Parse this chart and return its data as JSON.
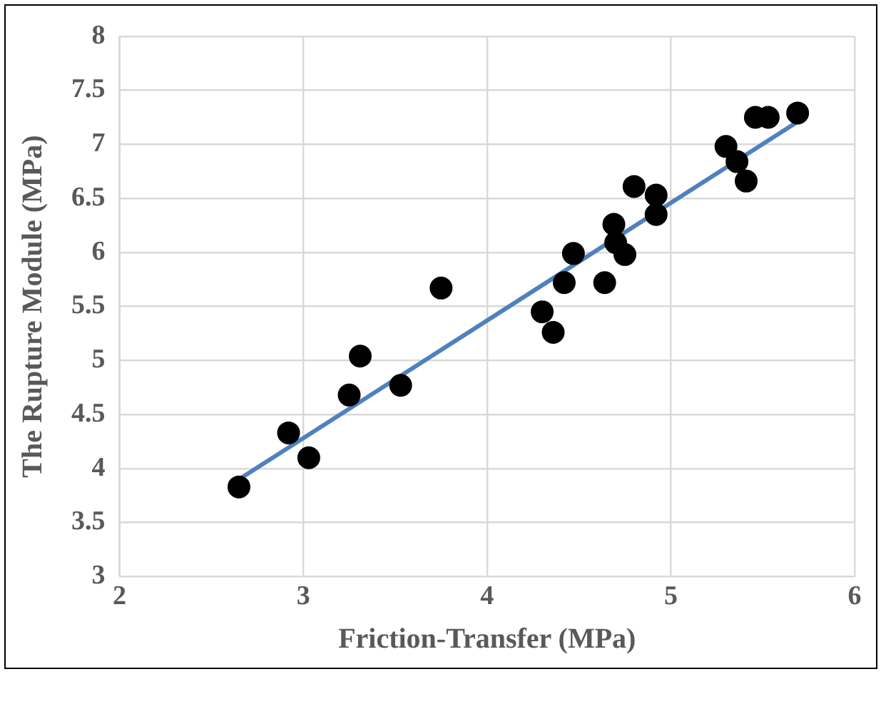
{
  "chart_data": {
    "type": "scatter",
    "xlabel": "Friction-Transfer (MPa)",
    "ylabel": "The Rupture Module (MPa)",
    "xlim": [
      2,
      6
    ],
    "xticks": [
      2,
      3,
      4,
      5,
      6
    ],
    "ylim": [
      3,
      8
    ],
    "yticks": [
      3,
      3.5,
      4,
      4.5,
      5,
      5.5,
      6,
      6.5,
      7,
      7.5,
      8
    ],
    "grid": true,
    "legend": false,
    "marker": "circle",
    "series": [
      {
        "color": "#000000",
        "x": [
          2.65,
          2.92,
          3.03,
          3.25,
          3.31,
          3.53,
          3.75,
          4.3,
          4.36,
          4.42,
          4.47,
          4.64,
          4.69,
          4.7,
          4.75,
          4.8,
          4.92,
          4.92,
          5.3,
          5.36,
          5.41,
          5.46,
          5.53,
          5.69
        ],
        "values": [
          3.83,
          4.33,
          4.1,
          4.68,
          5.04,
          4.77,
          5.67,
          5.45,
          5.26,
          5.72,
          5.99,
          5.72,
          6.26,
          6.09,
          5.98,
          6.61,
          6.53,
          6.35,
          6.98,
          6.84,
          6.66,
          7.25,
          7.25,
          7.29
        ]
      },
      {
        "type": "line",
        "color": "#4f81bd",
        "marker": "none",
        "line_style": "solid",
        "x": [
          2.65,
          5.7
        ],
        "values": [
          3.9,
          7.22
        ]
      }
    ]
  }
}
